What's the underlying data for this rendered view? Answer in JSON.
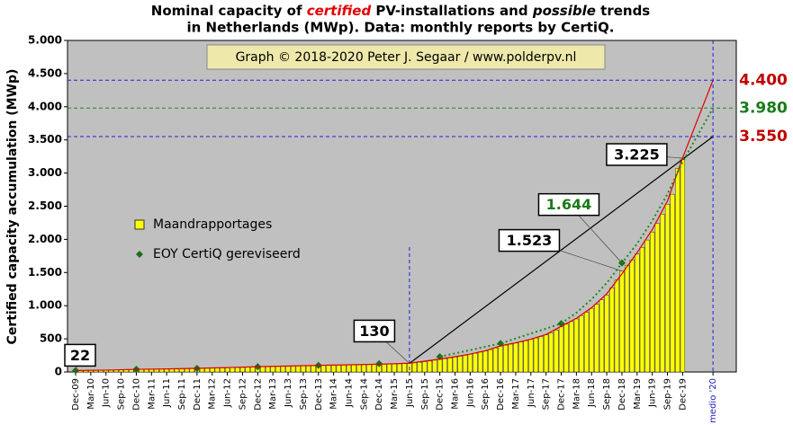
{
  "chart_data": {
    "type": "bar",
    "title": [
      "Nominal capacity of ",
      "certified",
      " PV-installations and ",
      "possible",
      " trends"
    ],
    "title_line2": "in Netherlands (MWp). Data: monthly reports by CertiQ.",
    "note": "Graph © 2018-2020 Peter J. Segaar / www.polderpv.nl",
    "ylabel": "Certified capacity accumulation (MWp)",
    "ylim": [
      0,
      5000
    ],
    "yticks": [
      0,
      500,
      {
        "value": 1000,
        "label": "1.000"
      },
      {
        "value": 1500,
        "label": "1.500"
      },
      {
        "value": 2000,
        "label": "2.000"
      },
      {
        "value": 2500,
        "label": "2.500"
      },
      {
        "value": 3000,
        "label": "3.000"
      },
      {
        "value": 3500,
        "label": "3.500"
      },
      {
        "value": 4000,
        "label": "4.000"
      },
      {
        "value": 4500,
        "label": "4.500"
      },
      {
        "value": 5000,
        "label": "5.000"
      }
    ],
    "grid": false,
    "legend": "left",
    "categories": [
      "Dec-09",
      null,
      null,
      "Mar-10",
      null,
      null,
      "Jun-10",
      null,
      null,
      "Sep-10",
      null,
      null,
      "Dec-10",
      null,
      null,
      "Mar-11",
      null,
      null,
      "Jun-11",
      null,
      null,
      "Sep-11",
      null,
      null,
      "Dec-11",
      null,
      null,
      "Mar-12",
      null,
      null,
      "Jun-12",
      null,
      null,
      "Sep-12",
      null,
      null,
      "Dec-12",
      null,
      null,
      "Mar-13",
      null,
      null,
      "Jun-13",
      null,
      null,
      "Sep-13",
      null,
      null,
      "Dec-13",
      null,
      null,
      "Mar-14",
      null,
      null,
      "Jun-14",
      null,
      null,
      "Sep-14",
      null,
      null,
      "Dec-14",
      null,
      null,
      "Mar-15",
      null,
      null,
      "Jun-15",
      null,
      null,
      "Sep-15",
      null,
      null,
      "Dec-15",
      null,
      null,
      "Mar-16",
      null,
      null,
      "Jun-16",
      null,
      null,
      "Sep-16",
      null,
      null,
      "Dec-16",
      null,
      null,
      "Mar-17",
      null,
      null,
      "Jun-17",
      null,
      null,
      "Sep-17",
      null,
      null,
      "Dec-17",
      null,
      null,
      "Mar-18",
      null,
      null,
      "Jun-18",
      null,
      null,
      "Sep-18",
      null,
      null,
      "Dec-18",
      null,
      null,
      "Mar-19",
      null,
      null,
      "Jun-19",
      null,
      null,
      "Sep-19",
      null,
      null,
      "Dec-19",
      null,
      null,
      null,
      null,
      null,
      "medio '20"
    ],
    "series": [
      {
        "type": "bar",
        "name": "Maandrapportages",
        "color": "#ffff00",
        "values": [
          22,
          23,
          24,
          25,
          26,
          27,
          28,
          29,
          30,
          32,
          34,
          36,
          38,
          40,
          41,
          42,
          43,
          44,
          45,
          46,
          47,
          48,
          50,
          52,
          54,
          56,
          58,
          59,
          61,
          62,
          64,
          65,
          67,
          70,
          73,
          76,
          79,
          81,
          83,
          84,
          86,
          87,
          89,
          90,
          92,
          94,
          96,
          98,
          100,
          102,
          103,
          104,
          105,
          106,
          107,
          108,
          109,
          110,
          111,
          113,
          115,
          117,
          119,
          121,
          124,
          127,
          130,
          138,
          146,
          155,
          165,
          177,
          190,
          200,
          212,
          225,
          238,
          252,
          267,
          283,
          300,
          318,
          338,
          362,
          390,
          405,
          420,
          436,
          454,
          472,
          492,
          513,
          535,
          560,
          590,
          630,
          680,
          720,
          760,
          800,
          850,
          900,
          960,
          1020,
          1090,
          1160,
          1270,
          1390,
          1523,
          1610,
          1690,
          1780,
          1880,
          1990,
          2110,
          2240,
          2380,
          2530,
          2680,
          3070,
          3225,
          null,
          null,
          null,
          null,
          null,
          null
        ]
      },
      {
        "type": "scatter",
        "name": "EOY CertiQ gereviseerd",
        "color": "#1a6e1a",
        "x": [
          "Dec-09",
          "Dec-10",
          "Dec-11",
          "Dec-12",
          "Dec-13",
          "Dec-14",
          "Dec-15",
          "Dec-16",
          "Dec-17",
          "Dec-18"
        ],
        "values": [
          22,
          40,
          55,
          80,
          100,
          125,
          230,
          430,
          730,
          1644
        ]
      },
      {
        "type": "line",
        "color": "#000000",
        "dash": "solid",
        "x": [
          "Jun-15",
          "medio '20"
        ],
        "values": [
          130,
          3550
        ]
      },
      {
        "type": "line",
        "color": "#e00000",
        "dash": "solid",
        "x": [
          "Dec-09",
          "Jun-10",
          "Dec-10",
          "Jun-11",
          "Dec-11",
          "Jun-12",
          "Dec-12",
          "Jun-13",
          "Dec-13",
          "Jun-14",
          "Dec-14",
          "Jun-15",
          "Dec-15",
          "Mar-16",
          "Jun-16",
          "Sep-16",
          "Dec-16",
          "Mar-17",
          "Jun-17",
          "Sep-17",
          "Dec-17",
          "Mar-18",
          "Jun-18",
          "Sep-18",
          "Dec-18",
          "Mar-19",
          "Jun-19",
          "Sep-19",
          "Dec-19",
          "medio '20"
        ],
        "values": [
          22,
          28,
          40,
          46,
          56,
          66,
          80,
          90,
          100,
          108,
          118,
          132,
          195,
          230,
          270,
          320,
          395,
          440,
          495,
          565,
          690,
          810,
          970,
          1180,
          1480,
          1800,
          2150,
          2580,
          3230,
          4400
        ]
      },
      {
        "type": "line",
        "color": "#1a8a1a",
        "dash": "dotted",
        "x": [
          "Dec-15",
          "Mar-16",
          "Jun-16",
          "Sep-16",
          "Dec-16",
          "Mar-17",
          "Jun-17",
          "Sep-17",
          "Dec-17",
          "Mar-18",
          "Jun-18",
          "Sep-18",
          "Dec-18",
          "Mar-19",
          "Jun-19",
          "Sep-19",
          "Dec-19",
          "medio '20"
        ],
        "values": [
          230,
          280,
          330,
          380,
          430,
          505,
          580,
          655,
          730,
          894,
          1096,
          1342,
          1644,
          1936,
          2280,
          2685,
          3170,
          3980
        ]
      }
    ],
    "callouts": [
      {
        "x": "Dec-09",
        "value": 22,
        "label": "22",
        "color": "#000000"
      },
      {
        "x": "Jun-15",
        "value": 130,
        "label": "130",
        "color": "#000000"
      },
      {
        "x": "Dec-18",
        "value": 1523,
        "label": "1.523",
        "color": "#000000"
      },
      {
        "x": "Dec-18",
        "value": 1644,
        "label": "1.644",
        "color": "#1a7a1a"
      },
      {
        "x": "Dec-19",
        "value": 3225,
        "label": "3.225",
        "color": "#000000"
      }
    ],
    "ref_lines": [
      {
        "value": 4400,
        "label": "4.400",
        "line_color": "#2020e0",
        "label_color": "#c00000"
      },
      {
        "value": 3980,
        "label": "3.980",
        "line_color": "#1a8a1a",
        "label_color": "#1a7a1a"
      },
      {
        "value": 3550,
        "label": "3.550",
        "line_color": "#2020e0",
        "label_color": "#c00000"
      }
    ]
  }
}
